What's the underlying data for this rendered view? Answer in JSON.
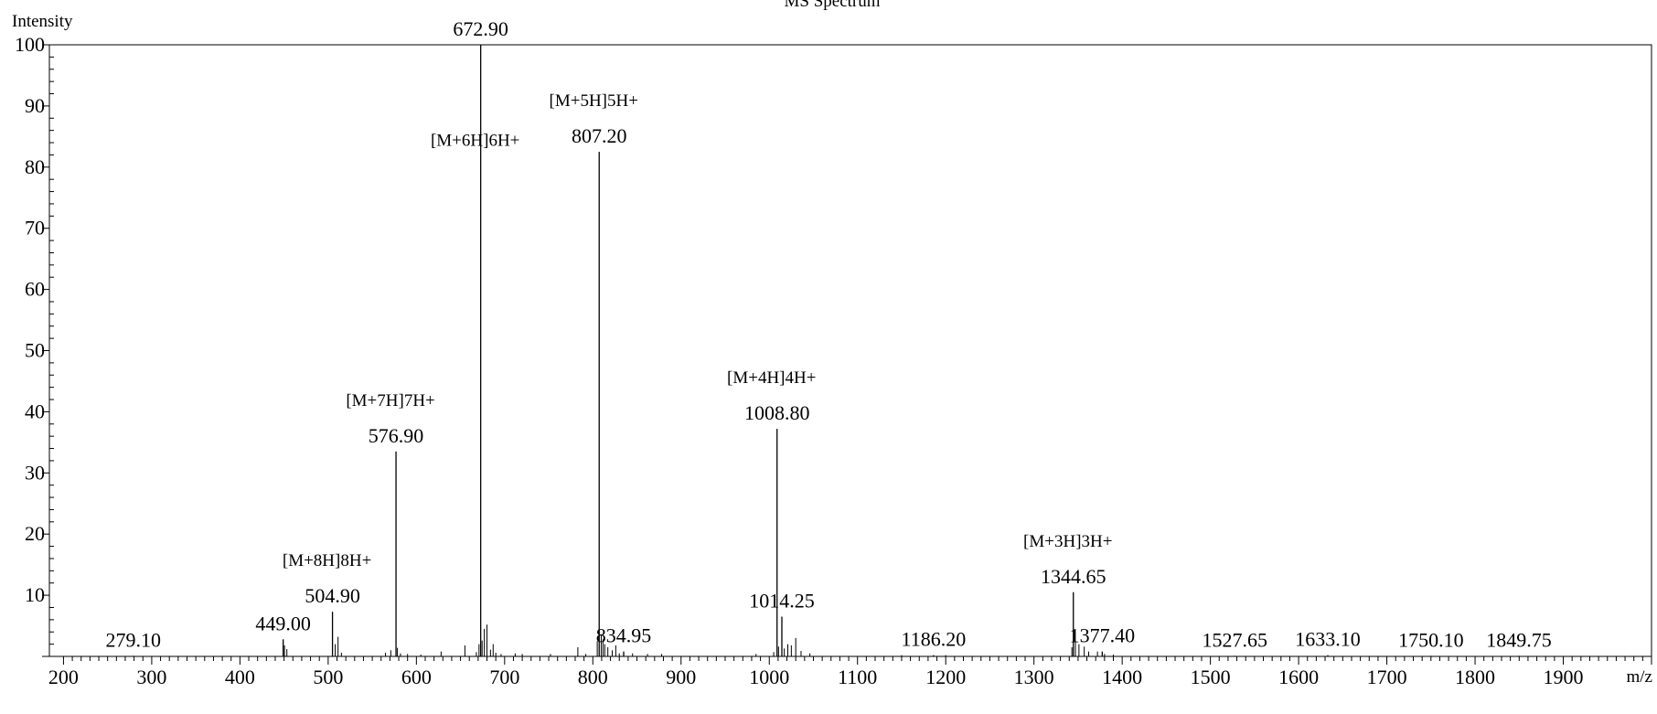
{
  "chart_data": {
    "type": "bar",
    "subtype": "mass-spectrum-stick",
    "title": "MS Spectrum",
    "xlabel": "m/z",
    "ylabel": "Intensity",
    "xlim": [
      184,
      2000
    ],
    "ylim": [
      0,
      100
    ],
    "x_ticks": [
      200,
      300,
      400,
      500,
      600,
      700,
      800,
      900,
      1000,
      1100,
      1200,
      1300,
      1400,
      1500,
      1600,
      1700,
      1800,
      1900
    ],
    "y_ticks": [
      10,
      20,
      30,
      40,
      50,
      60,
      70,
      80,
      90,
      100
    ],
    "grid": false,
    "labeled_peaks": [
      {
        "mz": 279.1,
        "intensity": 0.1,
        "label": "279.10",
        "ion": ""
      },
      {
        "mz": 449.0,
        "intensity": 2.8,
        "label": "449.00",
        "ion": ""
      },
      {
        "mz": 504.9,
        "intensity": 7.3,
        "label": "504.90",
        "ion": "[M+8H]8H+"
      },
      {
        "mz": 576.9,
        "intensity": 33.5,
        "label": "576.90",
        "ion": "[M+7H]7H+"
      },
      {
        "mz": 672.9,
        "intensity": 100.0,
        "label": "672.90",
        "ion": "[M+6H]6H+"
      },
      {
        "mz": 807.2,
        "intensity": 82.5,
        "label": "807.20",
        "ion": "[M+5H]5H+"
      },
      {
        "mz": 834.95,
        "intensity": 0.8,
        "label": "834.95",
        "ion": ""
      },
      {
        "mz": 1008.8,
        "intensity": 37.2,
        "label": "1008.80",
        "ion": "[M+4H]4H+"
      },
      {
        "mz": 1014.25,
        "intensity": 6.5,
        "label": "1014.25",
        "ion": ""
      },
      {
        "mz": 1186.2,
        "intensity": 0.2,
        "label": "1186.20",
        "ion": ""
      },
      {
        "mz": 1344.65,
        "intensity": 10.5,
        "label": "1344.65",
        "ion": "[M+3H]3H+"
      },
      {
        "mz": 1377.4,
        "intensity": 0.8,
        "label": "1377.40",
        "ion": ""
      },
      {
        "mz": 1527.65,
        "intensity": 0.1,
        "label": "1527.65",
        "ion": ""
      },
      {
        "mz": 1633.1,
        "intensity": 0.2,
        "label": "1633.10",
        "ion": ""
      },
      {
        "mz": 1750.1,
        "intensity": 0.1,
        "label": "1750.10",
        "ion": ""
      },
      {
        "mz": 1849.75,
        "intensity": 0.1,
        "label": "1849.75",
        "ion": ""
      }
    ],
    "minor_peaks": [
      [
        450.5,
        1.8
      ],
      [
        453.2,
        1.2
      ],
      [
        508.0,
        2.0
      ],
      [
        511.2,
        3.2
      ],
      [
        515.0,
        0.6
      ],
      [
        565.0,
        0.6
      ],
      [
        571.0,
        1.0
      ],
      [
        578.5,
        1.4
      ],
      [
        582.0,
        0.5
      ],
      [
        590.0,
        0.4
      ],
      [
        605.0,
        0.3
      ],
      [
        628.0,
        0.8
      ],
      [
        655.0,
        1.8
      ],
      [
        668.0,
        0.7
      ],
      [
        671.0,
        2.0
      ],
      [
        674.5,
        2.6
      ],
      [
        677.0,
        4.5
      ],
      [
        680.0,
        5.2
      ],
      [
        684.0,
        1.1
      ],
      [
        687.0,
        2.0
      ],
      [
        690.0,
        0.6
      ],
      [
        696.0,
        0.4
      ],
      [
        712.0,
        0.5
      ],
      [
        720.0,
        0.4
      ],
      [
        752.0,
        0.4
      ],
      [
        783.0,
        1.5
      ],
      [
        792.0,
        0.4
      ],
      [
        805.0,
        2.5
      ],
      [
        809.5,
        3.6
      ],
      [
        811.5,
        2.8
      ],
      [
        813.5,
        2.0
      ],
      [
        817.0,
        1.5
      ],
      [
        822.0,
        1.0
      ],
      [
        826.0,
        1.8
      ],
      [
        830.0,
        0.5
      ],
      [
        845.0,
        0.5
      ],
      [
        862.0,
        0.4
      ],
      [
        878.0,
        0.4
      ],
      [
        985.0,
        0.4
      ],
      [
        1005.0,
        0.7
      ],
      [
        1010.5,
        1.6
      ],
      [
        1017.0,
        1.3
      ],
      [
        1021.0,
        2.0
      ],
      [
        1025.0,
        1.8
      ],
      [
        1030.0,
        3.0
      ],
      [
        1036.0,
        0.9
      ],
      [
        1046.0,
        0.5
      ],
      [
        1150.0,
        0.2
      ],
      [
        1200.0,
        0.2
      ],
      [
        1343.0,
        1.5
      ],
      [
        1347.0,
        2.5
      ],
      [
        1351.0,
        2.0
      ],
      [
        1357.0,
        1.6
      ],
      [
        1362.0,
        0.8
      ],
      [
        1372.0,
        0.8
      ],
      [
        1380.0,
        0.4
      ],
      [
        1390.0,
        0.3
      ]
    ]
  }
}
